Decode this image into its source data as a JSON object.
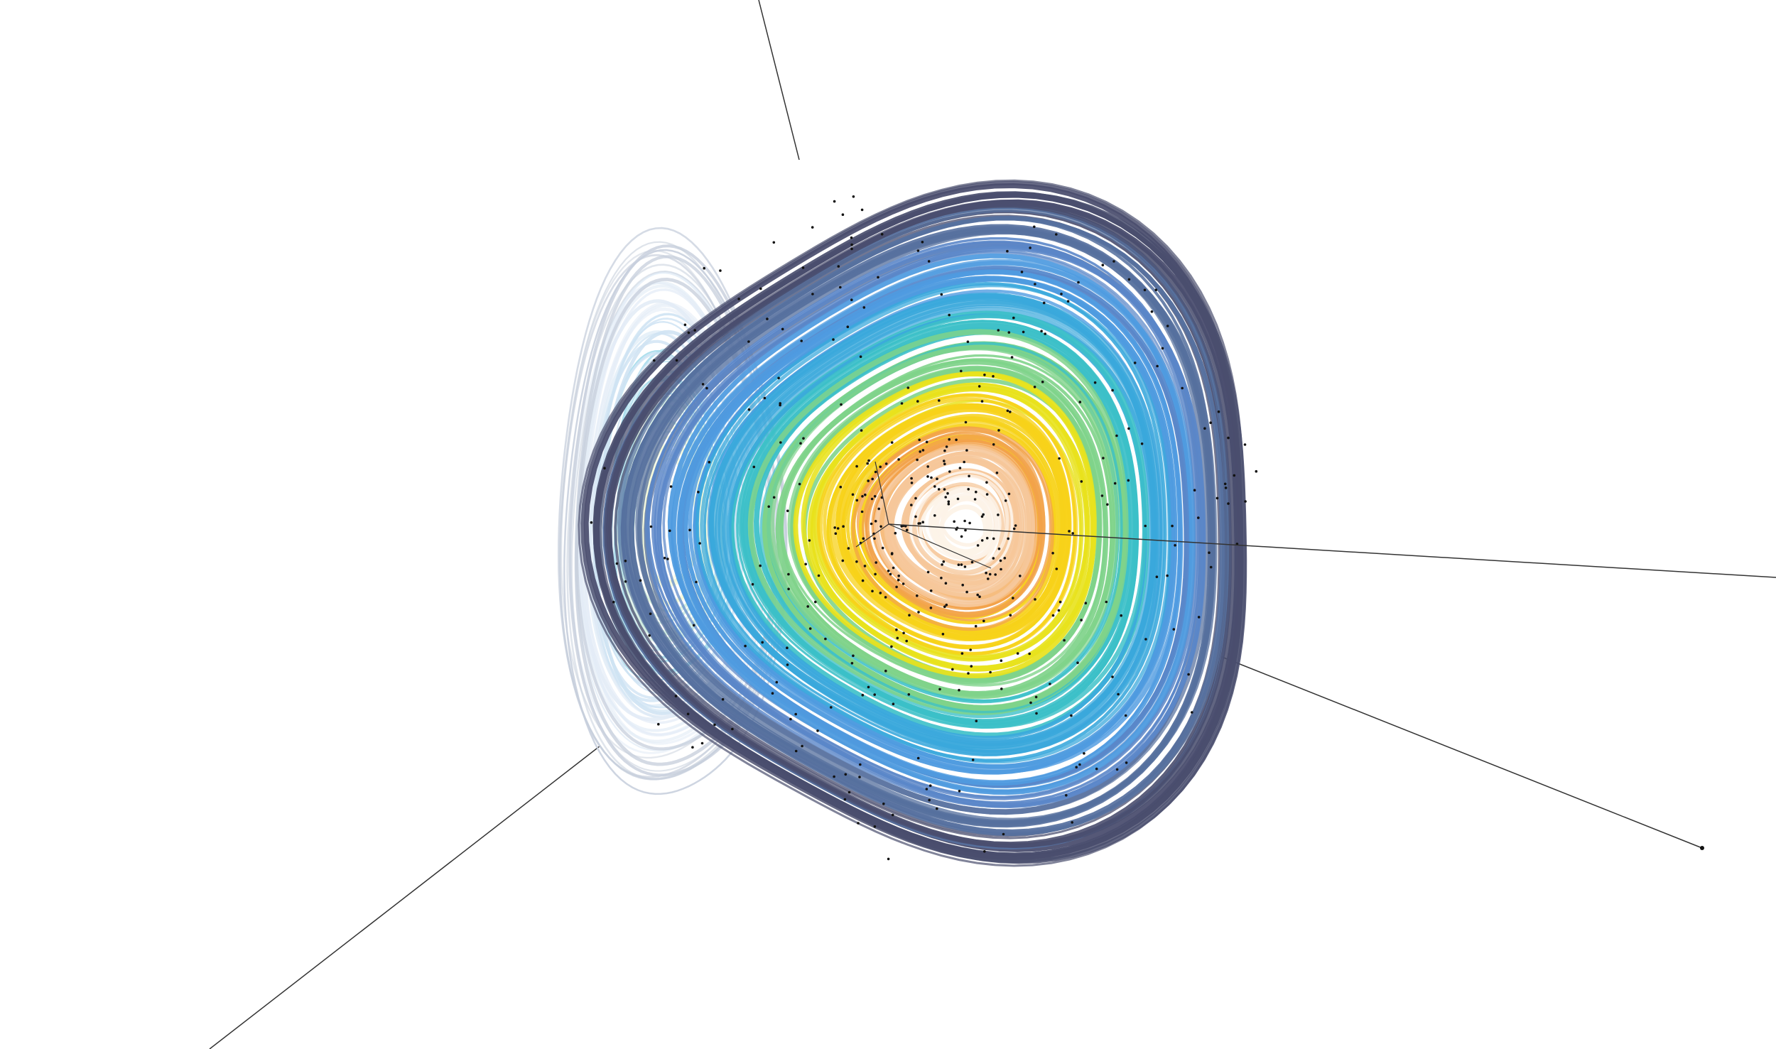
{
  "scene": {
    "background": "#ffffff",
    "axis_color": "#333333",
    "palette": [
      "#fdf3e8",
      "#f6c79a",
      "#f2a24a",
      "#f7d21a",
      "#e8e21c",
      "#7fd38a",
      "#3cc0c8",
      "#3aa8dc",
      "#4f9be0",
      "#5a86c8",
      "#56709e",
      "#4a4e6e"
    ],
    "lobe_palette": [
      "#f4f8d8",
      "#c9eadc",
      "#a8dcec",
      "#cfe3f3",
      "#e3ecf6",
      "#c7cfdc"
    ],
    "ring_count": 140,
    "lobe_ring_count": 60,
    "dot_count": 420,
    "seed": 7
  }
}
